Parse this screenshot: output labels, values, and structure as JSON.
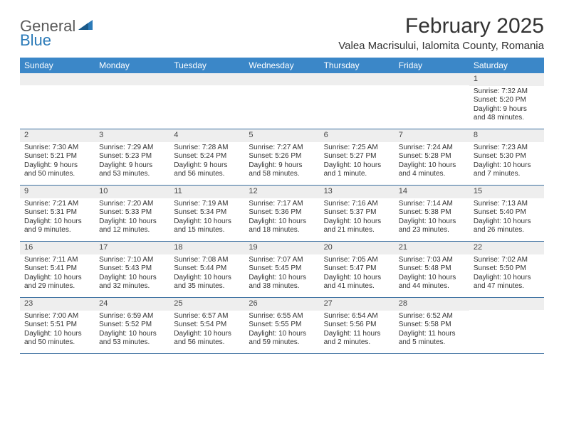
{
  "logo": {
    "part1": "General",
    "part2": "Blue"
  },
  "title": "February 2025",
  "location": "Valea Macrisului, Ialomita County, Romania",
  "colors": {
    "header_bar": "#3b87c8",
    "header_text": "#ffffff",
    "row_divider": "#3b6fa0",
    "daynum_bg": "#eeeeee",
    "body_text": "#333333",
    "logo_gray": "#5a5a5a",
    "logo_blue": "#2b7ab8",
    "page_bg": "#ffffff"
  },
  "days_of_week": [
    "Sunday",
    "Monday",
    "Tuesday",
    "Wednesday",
    "Thursday",
    "Friday",
    "Saturday"
  ],
  "weeks": [
    [
      {
        "n": "",
        "sunrise": "",
        "sunset": "",
        "daylight": ""
      },
      {
        "n": "",
        "sunrise": "",
        "sunset": "",
        "daylight": ""
      },
      {
        "n": "",
        "sunrise": "",
        "sunset": "",
        "daylight": ""
      },
      {
        "n": "",
        "sunrise": "",
        "sunset": "",
        "daylight": ""
      },
      {
        "n": "",
        "sunrise": "",
        "sunset": "",
        "daylight": ""
      },
      {
        "n": "",
        "sunrise": "",
        "sunset": "",
        "daylight": ""
      },
      {
        "n": "1",
        "sunrise": "Sunrise: 7:32 AM",
        "sunset": "Sunset: 5:20 PM",
        "daylight": "Daylight: 9 hours and 48 minutes."
      }
    ],
    [
      {
        "n": "2",
        "sunrise": "Sunrise: 7:30 AM",
        "sunset": "Sunset: 5:21 PM",
        "daylight": "Daylight: 9 hours and 50 minutes."
      },
      {
        "n": "3",
        "sunrise": "Sunrise: 7:29 AM",
        "sunset": "Sunset: 5:23 PM",
        "daylight": "Daylight: 9 hours and 53 minutes."
      },
      {
        "n": "4",
        "sunrise": "Sunrise: 7:28 AM",
        "sunset": "Sunset: 5:24 PM",
        "daylight": "Daylight: 9 hours and 56 minutes."
      },
      {
        "n": "5",
        "sunrise": "Sunrise: 7:27 AM",
        "sunset": "Sunset: 5:26 PM",
        "daylight": "Daylight: 9 hours and 58 minutes."
      },
      {
        "n": "6",
        "sunrise": "Sunrise: 7:25 AM",
        "sunset": "Sunset: 5:27 PM",
        "daylight": "Daylight: 10 hours and 1 minute."
      },
      {
        "n": "7",
        "sunrise": "Sunrise: 7:24 AM",
        "sunset": "Sunset: 5:28 PM",
        "daylight": "Daylight: 10 hours and 4 minutes."
      },
      {
        "n": "8",
        "sunrise": "Sunrise: 7:23 AM",
        "sunset": "Sunset: 5:30 PM",
        "daylight": "Daylight: 10 hours and 7 minutes."
      }
    ],
    [
      {
        "n": "9",
        "sunrise": "Sunrise: 7:21 AM",
        "sunset": "Sunset: 5:31 PM",
        "daylight": "Daylight: 10 hours and 9 minutes."
      },
      {
        "n": "10",
        "sunrise": "Sunrise: 7:20 AM",
        "sunset": "Sunset: 5:33 PM",
        "daylight": "Daylight: 10 hours and 12 minutes."
      },
      {
        "n": "11",
        "sunrise": "Sunrise: 7:19 AM",
        "sunset": "Sunset: 5:34 PM",
        "daylight": "Daylight: 10 hours and 15 minutes."
      },
      {
        "n": "12",
        "sunrise": "Sunrise: 7:17 AM",
        "sunset": "Sunset: 5:36 PM",
        "daylight": "Daylight: 10 hours and 18 minutes."
      },
      {
        "n": "13",
        "sunrise": "Sunrise: 7:16 AM",
        "sunset": "Sunset: 5:37 PM",
        "daylight": "Daylight: 10 hours and 21 minutes."
      },
      {
        "n": "14",
        "sunrise": "Sunrise: 7:14 AM",
        "sunset": "Sunset: 5:38 PM",
        "daylight": "Daylight: 10 hours and 23 minutes."
      },
      {
        "n": "15",
        "sunrise": "Sunrise: 7:13 AM",
        "sunset": "Sunset: 5:40 PM",
        "daylight": "Daylight: 10 hours and 26 minutes."
      }
    ],
    [
      {
        "n": "16",
        "sunrise": "Sunrise: 7:11 AM",
        "sunset": "Sunset: 5:41 PM",
        "daylight": "Daylight: 10 hours and 29 minutes."
      },
      {
        "n": "17",
        "sunrise": "Sunrise: 7:10 AM",
        "sunset": "Sunset: 5:43 PM",
        "daylight": "Daylight: 10 hours and 32 minutes."
      },
      {
        "n": "18",
        "sunrise": "Sunrise: 7:08 AM",
        "sunset": "Sunset: 5:44 PM",
        "daylight": "Daylight: 10 hours and 35 minutes."
      },
      {
        "n": "19",
        "sunrise": "Sunrise: 7:07 AM",
        "sunset": "Sunset: 5:45 PM",
        "daylight": "Daylight: 10 hours and 38 minutes."
      },
      {
        "n": "20",
        "sunrise": "Sunrise: 7:05 AM",
        "sunset": "Sunset: 5:47 PM",
        "daylight": "Daylight: 10 hours and 41 minutes."
      },
      {
        "n": "21",
        "sunrise": "Sunrise: 7:03 AM",
        "sunset": "Sunset: 5:48 PM",
        "daylight": "Daylight: 10 hours and 44 minutes."
      },
      {
        "n": "22",
        "sunrise": "Sunrise: 7:02 AM",
        "sunset": "Sunset: 5:50 PM",
        "daylight": "Daylight: 10 hours and 47 minutes."
      }
    ],
    [
      {
        "n": "23",
        "sunrise": "Sunrise: 7:00 AM",
        "sunset": "Sunset: 5:51 PM",
        "daylight": "Daylight: 10 hours and 50 minutes."
      },
      {
        "n": "24",
        "sunrise": "Sunrise: 6:59 AM",
        "sunset": "Sunset: 5:52 PM",
        "daylight": "Daylight: 10 hours and 53 minutes."
      },
      {
        "n": "25",
        "sunrise": "Sunrise: 6:57 AM",
        "sunset": "Sunset: 5:54 PM",
        "daylight": "Daylight: 10 hours and 56 minutes."
      },
      {
        "n": "26",
        "sunrise": "Sunrise: 6:55 AM",
        "sunset": "Sunset: 5:55 PM",
        "daylight": "Daylight: 10 hours and 59 minutes."
      },
      {
        "n": "27",
        "sunrise": "Sunrise: 6:54 AM",
        "sunset": "Sunset: 5:56 PM",
        "daylight": "Daylight: 11 hours and 2 minutes."
      },
      {
        "n": "28",
        "sunrise": "Sunrise: 6:52 AM",
        "sunset": "Sunset: 5:58 PM",
        "daylight": "Daylight: 11 hours and 5 minutes."
      },
      {
        "n": "",
        "sunrise": "",
        "sunset": "",
        "daylight": ""
      }
    ]
  ]
}
